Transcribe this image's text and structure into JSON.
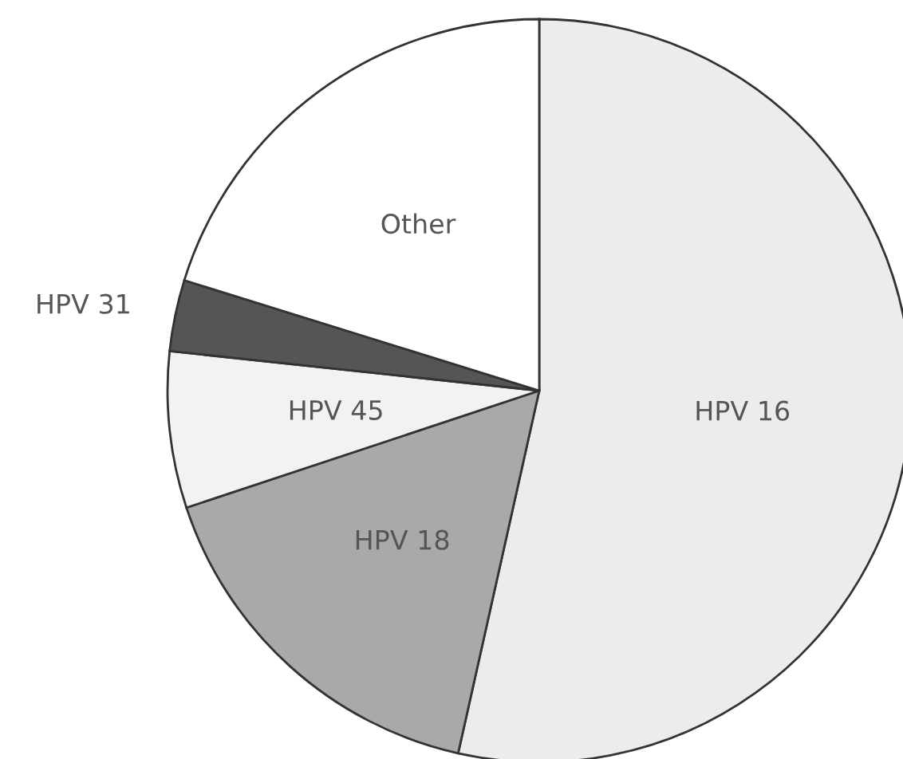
{
  "chart_data": {
    "type": "pie",
    "categories": [
      "HPV 16",
      "HPV 18",
      "HPV 45",
      "HPV 31",
      "Other"
    ],
    "values": [
      53.5,
      16.4,
      6.8,
      3.1,
      20.2
    ],
    "colors": [
      "#ececec",
      "#a9a9a9",
      "#f2f2f2",
      "#555555",
      "#ffffff"
    ]
  }
}
